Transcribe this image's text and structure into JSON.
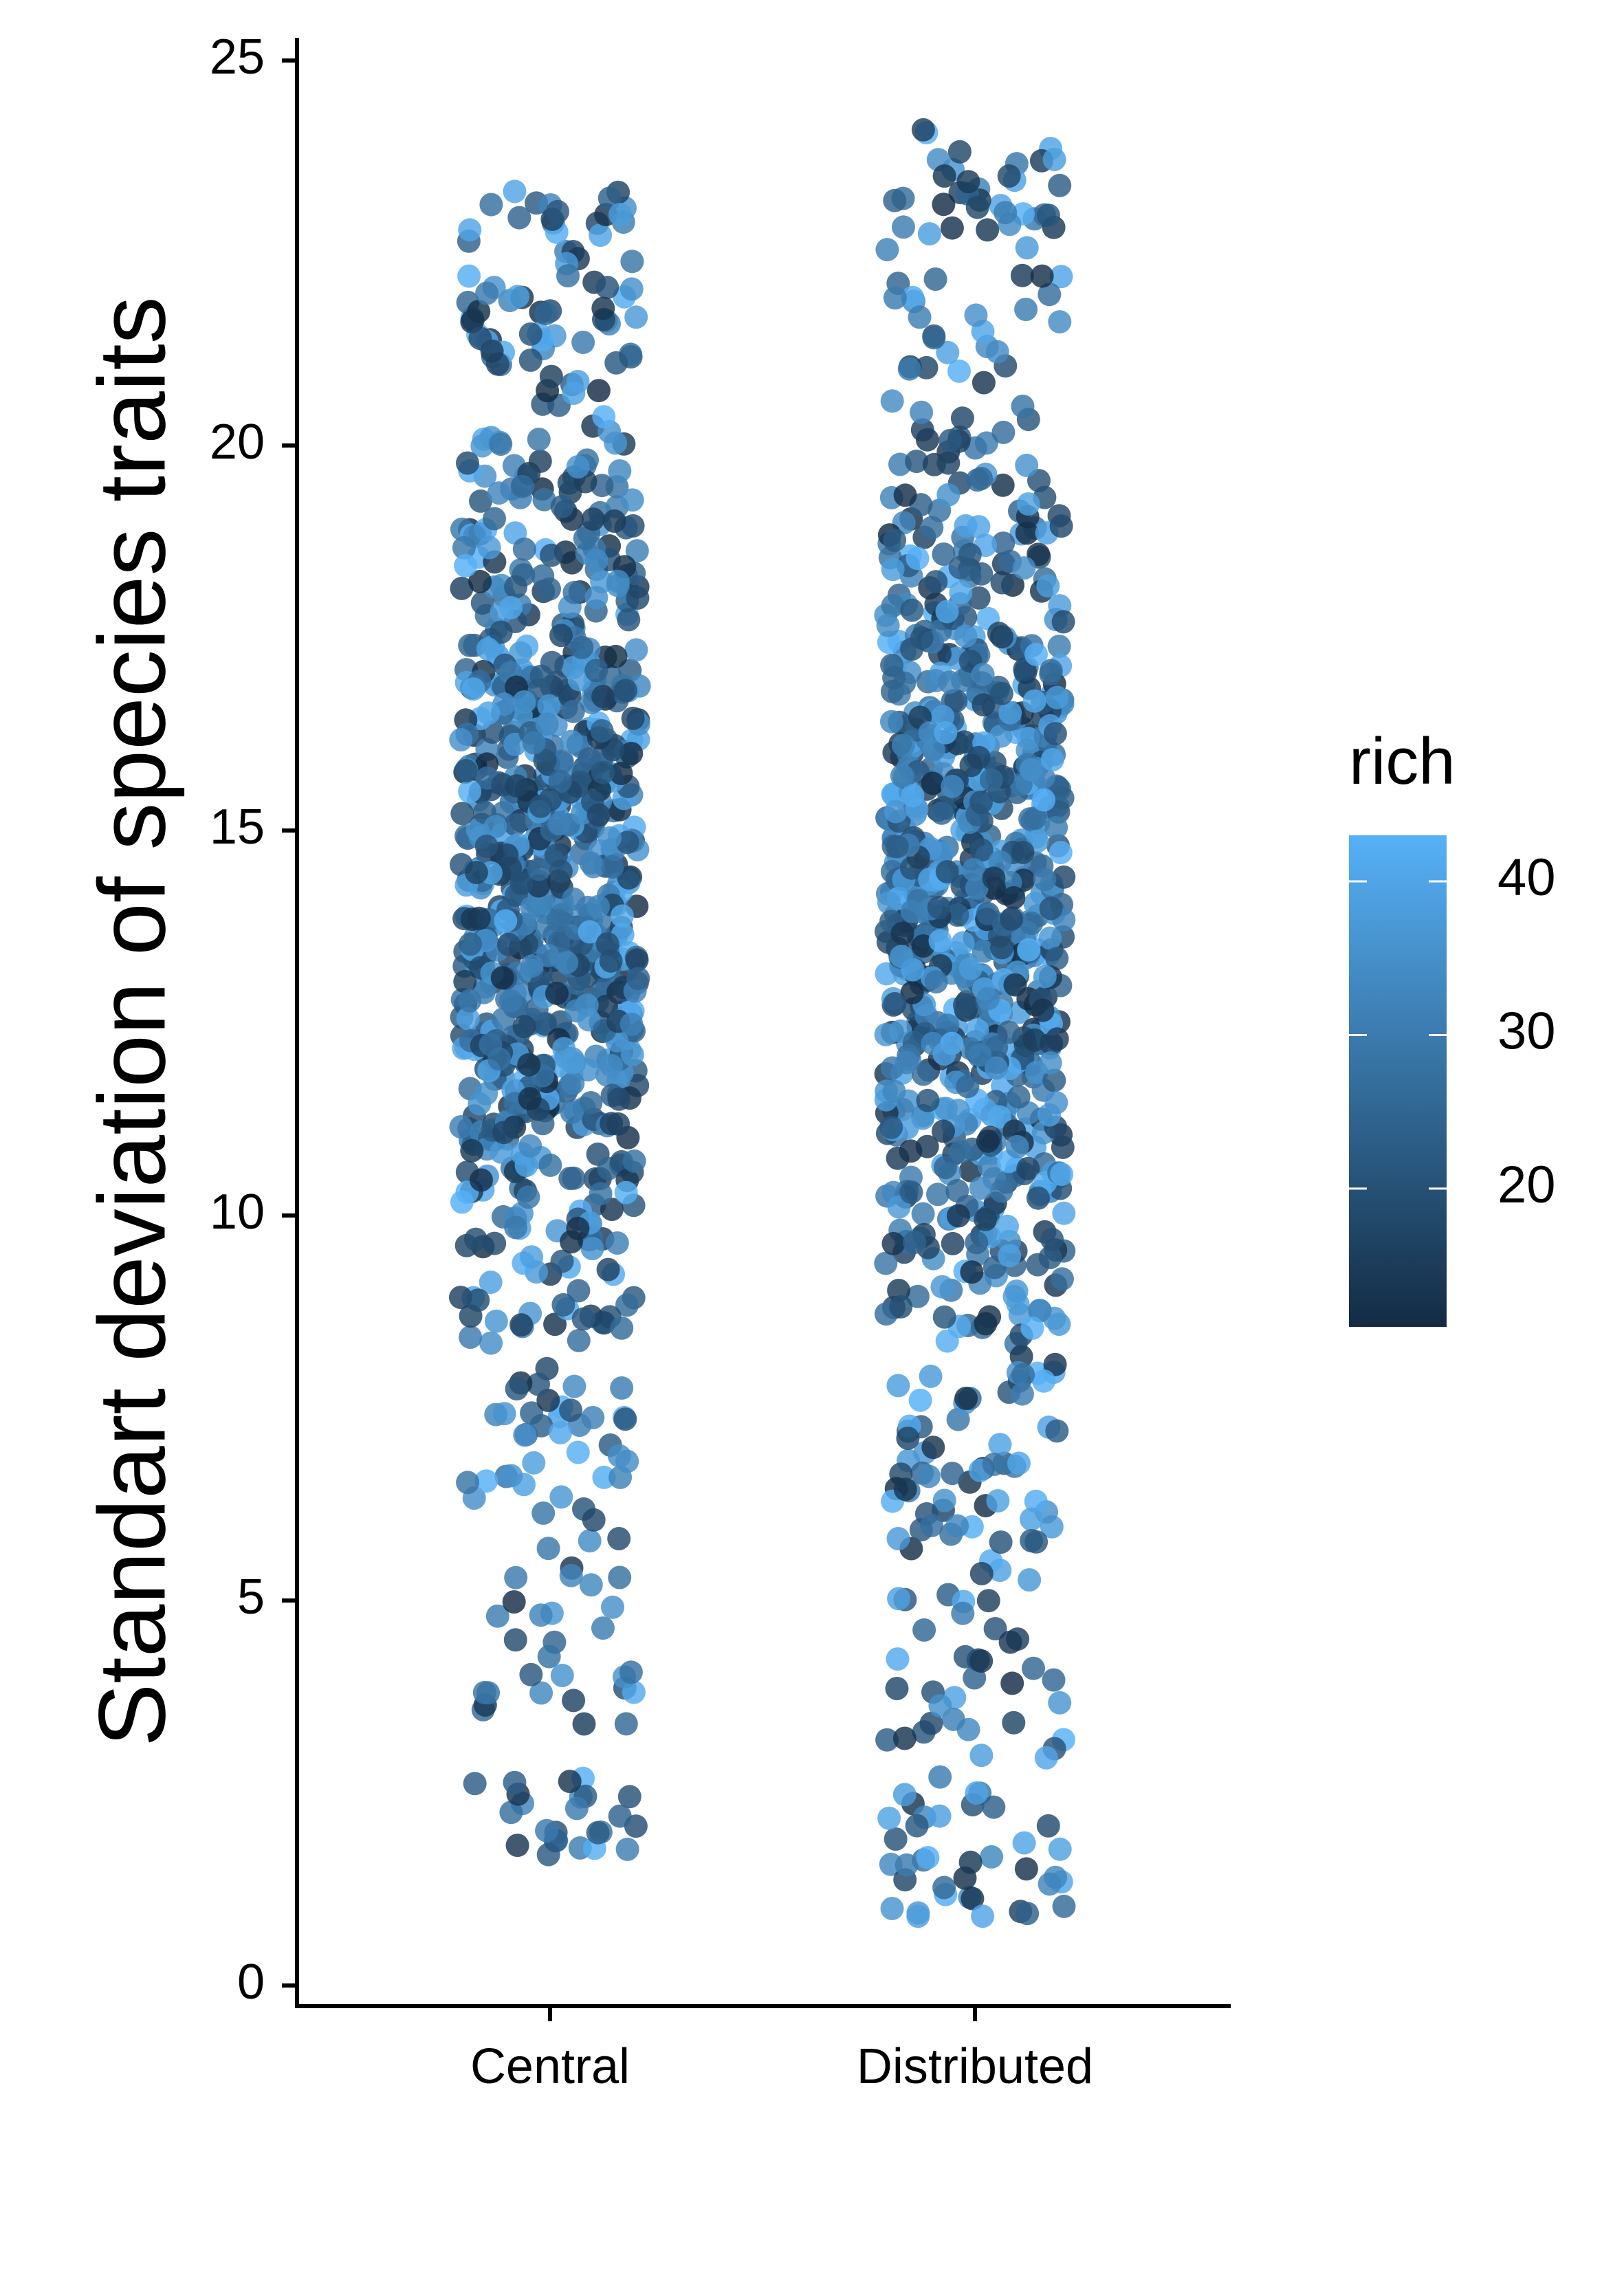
{
  "chart_data": {
    "type": "scatter",
    "subtype": "jitter-strip",
    "title": "",
    "xlabel": "",
    "ylabel": "Standart deviation of species traits",
    "categories": [
      "Central",
      "Distributed"
    ],
    "ylim": [
      0,
      25
    ],
    "y_ticks": [
      0,
      5,
      10,
      15,
      20,
      25
    ],
    "grid": false,
    "legend": {
      "title": "rich",
      "position": "right",
      "type": "colorbar",
      "range": [
        11,
        43
      ],
      "ticks": [
        20,
        30,
        40
      ],
      "color_low": "#132B43",
      "color_high": "#56B1F7"
    },
    "groups": [
      {
        "category": "Central",
        "y_range": [
          1.7,
          23.3
        ],
        "dense_band": [
          8,
          21
        ],
        "rich_range": [
          11,
          43
        ],
        "approx_point_count": 1000,
        "notable_points": [
          {
            "y": 23.3,
            "rich": 40
          },
          {
            "y": 23.0,
            "rich": 38
          },
          {
            "y": 22.8,
            "rich": 40
          },
          {
            "y": 22.2,
            "rich": 42
          },
          {
            "y": 1.7,
            "rich": 22
          },
          {
            "y": 2.2,
            "rich": 24
          },
          {
            "y": 2.3,
            "rich": 30
          }
        ]
      },
      {
        "category": "Distributed",
        "y_range": [
          0.9,
          24.1
        ],
        "dense_band": [
          7,
          21
        ],
        "rich_range": [
          11,
          43
        ],
        "approx_point_count": 1000,
        "notable_points": [
          {
            "y": 24.1,
            "rich": 16
          },
          {
            "y": 23.5,
            "rich": 18
          },
          {
            "y": 23.5,
            "rich": 14
          },
          {
            "y": 22.8,
            "rich": 14
          },
          {
            "y": 22.2,
            "rich": 12
          },
          {
            "y": 0.9,
            "rich": 40
          },
          {
            "y": 0.9,
            "rich": 38
          },
          {
            "y": 1.0,
            "rich": 36
          },
          {
            "y": 1.6,
            "rich": 14
          },
          {
            "y": 2.5,
            "rich": 40
          }
        ]
      }
    ]
  }
}
